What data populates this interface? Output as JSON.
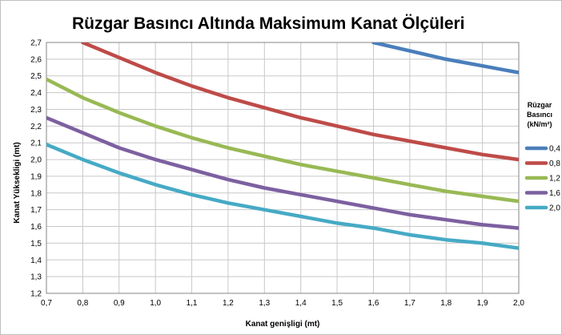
{
  "chart_data": {
    "type": "line",
    "title": "Rüzgar Basıncı Altında Maksimum Kanat Ölçüleri",
    "xlabel": "Kanat genişligi (mt)",
    "ylabel": "Kanat Yüksekligi (mt)",
    "xlim": [
      0.7,
      2.0
    ],
    "ylim": [
      1.2,
      2.7
    ],
    "x_ticks": [
      "0,7",
      "0,8",
      "0,9",
      "1,0",
      "1,1",
      "1,2",
      "1,3",
      "1,4",
      "1,5",
      "1,6",
      "1,7",
      "1,8",
      "1,9",
      "2,0"
    ],
    "y_ticks": [
      "1,2",
      "1,3",
      "1,4",
      "1,5",
      "1,6",
      "1,7",
      "1,8",
      "1,9",
      "2,0",
      "2,1",
      "2,2",
      "2,3",
      "2,4",
      "2,5",
      "2,6",
      "2,7"
    ],
    "grid": true,
    "legend": {
      "title_lines": [
        "Rüzgar",
        "Basıncı",
        "(kN/m²)"
      ],
      "position": "right"
    },
    "x": [
      0.7,
      0.8,
      0.9,
      1.0,
      1.1,
      1.2,
      1.3,
      1.4,
      1.5,
      1.6,
      1.7,
      1.8,
      1.9,
      2.0
    ],
    "series": [
      {
        "name": "0,4",
        "color": "#4a7ebb",
        "values": [
          null,
          null,
          null,
          null,
          null,
          null,
          null,
          null,
          null,
          2.7,
          2.65,
          2.6,
          2.56,
          2.52
        ]
      },
      {
        "name": "0,8",
        "color": "#be4b48",
        "values": [
          null,
          2.7,
          2.61,
          2.52,
          2.44,
          2.37,
          2.31,
          2.25,
          2.2,
          2.15,
          2.11,
          2.07,
          2.03,
          2.0
        ]
      },
      {
        "name": "1,2",
        "color": "#98b954",
        "values": [
          2.48,
          2.37,
          2.28,
          2.2,
          2.13,
          2.07,
          2.02,
          1.97,
          1.93,
          1.89,
          1.85,
          1.81,
          1.78,
          1.75
        ]
      },
      {
        "name": "1,6",
        "color": "#7d60a0",
        "values": [
          2.25,
          2.16,
          2.07,
          2.0,
          1.94,
          1.88,
          1.83,
          1.79,
          1.75,
          1.71,
          1.67,
          1.64,
          1.61,
          1.59
        ]
      },
      {
        "name": "2,0",
        "color": "#46aac5",
        "values": [
          2.09,
          2.0,
          1.92,
          1.85,
          1.79,
          1.74,
          1.7,
          1.66,
          1.62,
          1.59,
          1.55,
          1.52,
          1.5,
          1.47
        ]
      }
    ]
  }
}
